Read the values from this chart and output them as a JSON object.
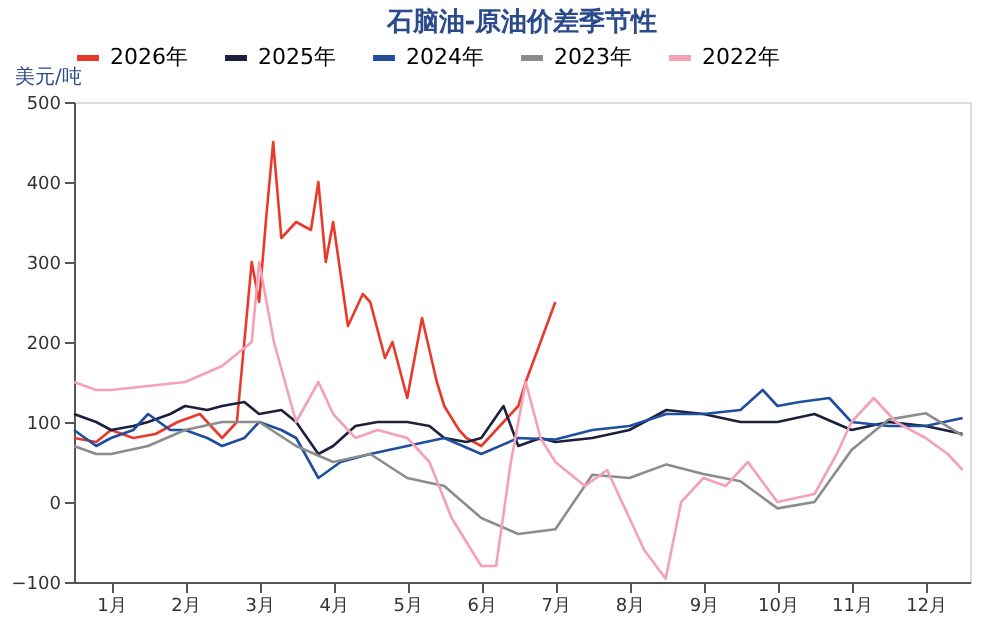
{
  "chart_data": {
    "type": "line",
    "title": "石脑油-原油价差季节性",
    "ylabel": "美元/吨",
    "legend": "top",
    "grid": false,
    "marker": "none",
    "line_style": "solid",
    "xlim": [
      0.5,
      12.6
    ],
    "xticks": [
      {
        "value": 1,
        "label": "1月"
      },
      {
        "value": 2,
        "label": "2月"
      },
      {
        "value": 3,
        "label": "3月"
      },
      {
        "value": 4,
        "label": "4月"
      },
      {
        "value": 5,
        "label": "5月"
      },
      {
        "value": 6,
        "label": "6月"
      },
      {
        "value": 7,
        "label": "7月"
      },
      {
        "value": 8,
        "label": "8月"
      },
      {
        "value": 9,
        "label": "9月"
      },
      {
        "value": 10,
        "label": "10月"
      },
      {
        "value": 11,
        "label": "11月"
      },
      {
        "value": 12,
        "label": "12月"
      }
    ],
    "ylim": [
      -100,
      500
    ],
    "yticks": [
      -100,
      0,
      100,
      200,
      300,
      400,
      500
    ],
    "series": [
      {
        "name": "2026年",
        "color": "#e8392a",
        "x": [
          0.5,
          0.8,
          1.0,
          1.3,
          1.6,
          1.9,
          2.2,
          2.5,
          2.7,
          2.9,
          3.0,
          3.1,
          3.19,
          3.3,
          3.5,
          3.7,
          3.8,
          3.9,
          4.0,
          4.2,
          4.4,
          4.5,
          4.7,
          4.8,
          5.0,
          5.2,
          5.4,
          5.5,
          5.7,
          5.8,
          6.0,
          6.2,
          6.3,
          6.5,
          6.6,
          6.8,
          7.0
        ],
        "values": [
          80,
          75,
          90,
          80,
          85,
          100,
          110,
          80,
          100,
          300,
          250,
          360,
          450,
          330,
          350,
          340,
          400,
          300,
          350,
          220,
          260,
          250,
          180,
          200,
          130,
          230,
          150,
          120,
          90,
          80,
          70,
          90,
          100,
          120,
          150,
          200,
          250
        ]
      },
      {
        "name": "2025年",
        "color": "#1c1f3d",
        "x": [
          0.5,
          0.8,
          1.0,
          1.3,
          1.5,
          1.8,
          2.0,
          2.3,
          2.5,
          2.8,
          3.0,
          3.3,
          3.5,
          3.8,
          4.0,
          4.3,
          4.6,
          5.0,
          5.3,
          5.5,
          5.8,
          6.0,
          6.3,
          6.5,
          6.8,
          7.0,
          7.5,
          8.0,
          8.5,
          9.0,
          9.5,
          10.0,
          10.5,
          11.0,
          11.5,
          12.0,
          12.5
        ],
        "values": [
          110,
          100,
          90,
          95,
          100,
          110,
          120,
          115,
          120,
          125,
          110,
          115,
          100,
          60,
          70,
          95,
          100,
          100,
          95,
          80,
          75,
          80,
          120,
          70,
          80,
          75,
          80,
          90,
          115,
          110,
          100,
          100,
          110,
          90,
          100,
          95,
          85
        ]
      },
      {
        "name": "2024年",
        "color": "#1f4e9e",
        "x": [
          0.5,
          0.8,
          1.0,
          1.3,
          1.5,
          1.8,
          2.0,
          2.3,
          2.5,
          2.8,
          3.0,
          3.3,
          3.5,
          3.8,
          4.1,
          4.5,
          5.0,
          5.5,
          6.0,
          6.5,
          7.0,
          7.5,
          8.0,
          8.5,
          9.0,
          9.5,
          9.8,
          10.0,
          10.3,
          10.7,
          11.0,
          11.5,
          12.0,
          12.5
        ],
        "values": [
          90,
          70,
          80,
          90,
          110,
          90,
          90,
          80,
          70,
          80,
          100,
          90,
          80,
          30,
          50,
          60,
          70,
          80,
          60,
          80,
          78,
          90,
          95,
          110,
          110,
          115,
          140,
          120,
          125,
          130,
          100,
          95,
          95,
          105
        ]
      },
      {
        "name": "2023年",
        "color": "#8c8c8c",
        "x": [
          0.5,
          0.8,
          1.0,
          1.5,
          2.0,
          2.5,
          3.0,
          3.5,
          4.0,
          4.5,
          5.0,
          5.5,
          6.0,
          6.5,
          7.0,
          7.5,
          8.0,
          8.5,
          9.0,
          9.5,
          10.0,
          10.5,
          11.0,
          11.5,
          12.0,
          12.5
        ],
        "values": [
          70,
          60,
          60,
          70,
          90,
          100,
          100,
          70,
          50,
          60,
          30,
          20,
          -20,
          -40,
          -34,
          34,
          30,
          47,
          35,
          26,
          -8,
          0,
          65,
          103,
          111,
          83
        ]
      },
      {
        "name": "2022年",
        "color": "#f4a0b5",
        "x": [
          0.5,
          0.8,
          1.0,
          1.5,
          2.0,
          2.5,
          2.9,
          3.0,
          3.2,
          3.5,
          3.8,
          4.0,
          4.3,
          4.6,
          5.0,
          5.3,
          5.6,
          6.0,
          6.2,
          6.4,
          6.6,
          6.8,
          7.0,
          7.4,
          7.7,
          8.0,
          8.2,
          8.49,
          8.7,
          9.0,
          9.3,
          9.6,
          10.0,
          10.5,
          10.8,
          11.0,
          11.3,
          11.6,
          12.0,
          12.3,
          12.5
        ],
        "values": [
          150,
          140,
          140,
          145,
          150,
          170,
          200,
          300,
          200,
          100,
          150,
          110,
          80,
          90,
          80,
          50,
          -20,
          -80,
          -80,
          50,
          150,
          80,
          50,
          20,
          40,
          -20,
          -60,
          -96,
          0,
          30,
          20,
          50,
          0,
          10,
          60,
          100,
          130,
          100,
          80,
          60,
          40
        ]
      }
    ]
  }
}
